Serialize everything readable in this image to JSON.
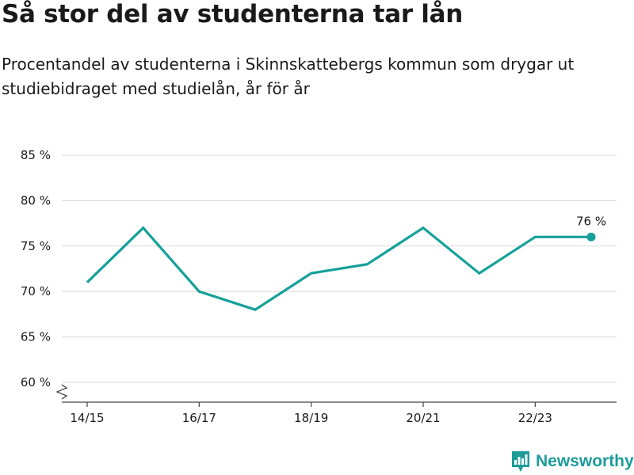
{
  "title": "Så stor del av studenterna tar lån",
  "subtitle": "Procentandel av studenterna i Skinnskattebergs kommun som drygar ut studiebidraget med studielån, år för år",
  "brand": {
    "name": "Newsworthy",
    "icon": "newsworthy-logo-icon"
  },
  "colors": {
    "line": "#15a09a",
    "grid": "#d9d9d9",
    "axis": "#444444",
    "brand": "#1d9c9a"
  },
  "chart_data": {
    "type": "line",
    "x": [
      "14/15",
      "15/16",
      "16/17",
      "17/18",
      "18/19",
      "19/20",
      "20/21",
      "21/22",
      "22/23",
      "23/24"
    ],
    "xtick_labels": [
      "14/15",
      "16/17",
      "18/19",
      "20/21",
      "22/23"
    ],
    "series": [
      {
        "values": [
          71,
          77,
          70,
          68,
          72,
          73,
          77,
          72,
          76,
          76
        ]
      }
    ],
    "ylim": [
      60,
      85
    ],
    "yticks": [
      60,
      65,
      70,
      75,
      80,
      85
    ],
    "y_tick_labels": [
      "60 %",
      "65 %",
      "70 %",
      "75 %",
      "80 %",
      "85 %"
    ],
    "axis_break": true,
    "end_label": "76 %",
    "grid": true,
    "xlabel": "",
    "ylabel": ""
  }
}
